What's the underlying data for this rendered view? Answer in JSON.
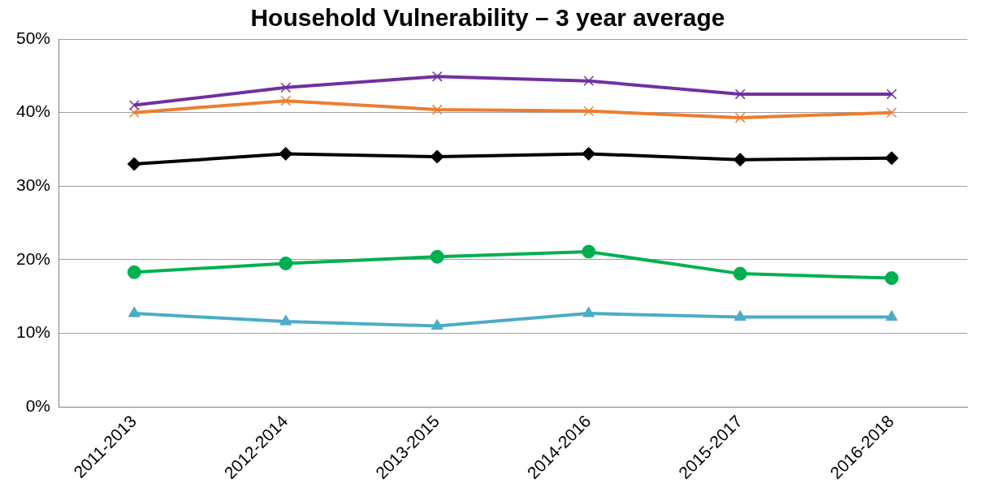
{
  "chart_data": {
    "type": "line",
    "title": "Household Vulnerability – 3 year average",
    "categories": [
      "2011-2013",
      "2012-2014",
      "2013-2015",
      "2014-2016",
      "2015-2017",
      "2016-2018"
    ],
    "series": [
      {
        "color": "#7030a0",
        "marker": "cross",
        "values": [
          41.0,
          43.4,
          44.9,
          44.3,
          42.5,
          42.5
        ]
      },
      {
        "color": "#ed7d31",
        "marker": "cross",
        "values": [
          40.0,
          41.6,
          40.4,
          40.2,
          39.3,
          40.0
        ]
      },
      {
        "color": "#000000",
        "marker": "diamond",
        "values": [
          33.0,
          34.4,
          34.0,
          34.4,
          33.6,
          33.8
        ]
      },
      {
        "color": "#00b050",
        "marker": "circle",
        "values": [
          18.3,
          19.5,
          20.4,
          21.1,
          18.1,
          17.5
        ]
      },
      {
        "color": "#4bacc6",
        "marker": "triangle",
        "values": [
          12.7,
          11.6,
          11.0,
          12.7,
          12.2,
          12.2
        ]
      }
    ],
    "ylim": [
      0,
      50
    ],
    "yticks": [
      {
        "value": 0,
        "label": "0%"
      },
      {
        "value": 10,
        "label": "10%"
      },
      {
        "value": 20,
        "label": "20%"
      },
      {
        "value": 30,
        "label": "30%"
      },
      {
        "value": 40,
        "label": "40%"
      },
      {
        "value": 50,
        "label": "50%"
      }
    ],
    "grid": "y",
    "legend": false,
    "line_style": "solid"
  }
}
